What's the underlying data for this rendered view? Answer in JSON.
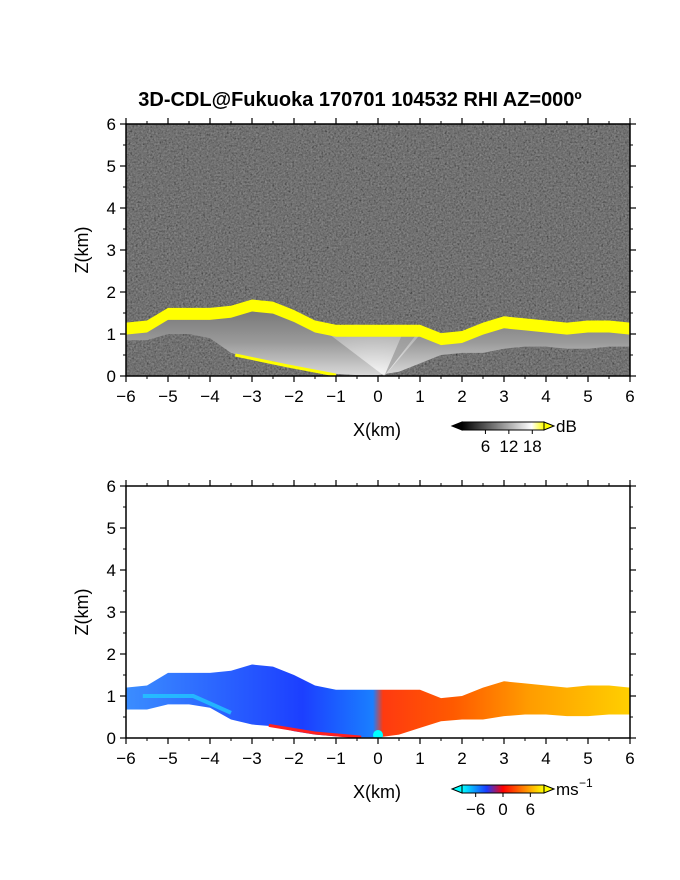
{
  "title": "3D-CDL@Fukuoka 170701 104532 RHI AZ=000º",
  "chart_data": [
    {
      "type": "heatmap",
      "panel": "top",
      "quantity": "reflectivity",
      "xlabel": "X(km)",
      "ylabel": "Z(km)",
      "xlim": [
        -6,
        6
      ],
      "ylim": [
        0,
        6
      ],
      "xticks": [
        -6,
        -5,
        -4,
        -3,
        -2,
        -1,
        0,
        1,
        2,
        3,
        4,
        5,
        6
      ],
      "yticks": [
        0,
        1,
        2,
        3,
        4,
        5,
        6
      ],
      "colorbar": {
        "unit": "dB",
        "ticks": [
          6,
          12,
          18
        ],
        "range": [
          0,
          21
        ],
        "colors": [
          "#000000",
          "#ffffff",
          "#ffff00"
        ]
      },
      "layer_top_profile": {
        "x": [
          -6,
          -5.5,
          -5,
          -4.5,
          -4,
          -3.5,
          -3,
          -2.5,
          -2,
          -1.5,
          -1,
          -0.5,
          0,
          0.5,
          1,
          1.5,
          2,
          2.5,
          3,
          3.5,
          4,
          4.5,
          5,
          5.5,
          6
        ],
        "z": [
          1.2,
          1.25,
          1.55,
          1.55,
          1.55,
          1.6,
          1.75,
          1.7,
          1.5,
          1.25,
          1.15,
          1.15,
          1.15,
          1.15,
          1.15,
          0.95,
          1.0,
          1.2,
          1.35,
          1.3,
          1.25,
          1.2,
          1.25,
          1.25,
          1.2
        ]
      },
      "layer_base_profile": {
        "x": [
          -6,
          -5.5,
          -5,
          -4.5,
          -4,
          -3.5,
          -3,
          -2.5,
          -2,
          -1.5,
          -1,
          -0.5,
          0,
          0.5,
          1,
          1.5,
          2,
          2.5,
          3,
          3.5,
          4,
          4.5,
          5,
          5.5,
          6
        ],
        "z": [
          0.85,
          0.85,
          1.0,
          1.0,
          0.9,
          0.55,
          0.4,
          0.35,
          0.2,
          0.1,
          0.05,
          0.02,
          0.02,
          0.1,
          0.3,
          0.5,
          0.55,
          0.55,
          0.65,
          0.7,
          0.7,
          0.65,
          0.65,
          0.7,
          0.7
        ]
      }
    },
    {
      "type": "heatmap",
      "panel": "bottom",
      "quantity": "radial velocity",
      "xlabel": "X(km)",
      "ylabel": "Z(km)",
      "xlim": [
        -6,
        6
      ],
      "ylim": [
        0,
        6
      ],
      "xticks": [
        -6,
        -5,
        -4,
        -3,
        -2,
        -1,
        0,
        1,
        2,
        3,
        4,
        5,
        6
      ],
      "yticks": [
        0,
        1,
        2,
        3,
        4,
        5,
        6
      ],
      "colorbar": {
        "unit": "ms",
        "unit_exp": "-1",
        "ticks": [
          -6,
          0,
          6
        ],
        "range": [
          -9,
          9
        ],
        "colors": [
          "#00ffff",
          "#1a3cff",
          "#ff0000",
          "#ff8000",
          "#ffff00"
        ]
      },
      "velocity_profile": {
        "x": [
          -6,
          -5,
          -4,
          -3,
          -2,
          -1,
          -0.5,
          0,
          0.5,
          1,
          2,
          3,
          4,
          5,
          6
        ],
        "v": [
          -4,
          -4.5,
          -5,
          -5,
          -4.5,
          -4,
          -3.5,
          0,
          1.5,
          2.5,
          3.5,
          4.5,
          5.5,
          6,
          6.5
        ]
      }
    }
  ]
}
